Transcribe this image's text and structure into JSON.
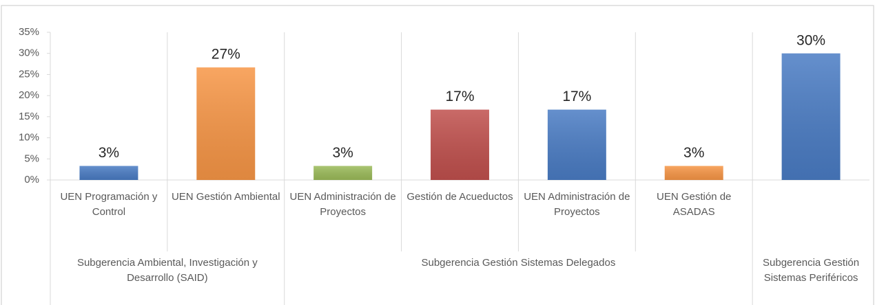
{
  "chart_data": {
    "type": "bar",
    "groups": [
      {
        "name": "Subgerencia Ambiental, Investigación y Desarrollo (SAID)",
        "categories": [
          "UEN Programación y Control",
          "UEN Gestión Ambiental"
        ]
      },
      {
        "name": "Subgerencia Gestión Sistemas Delegados",
        "categories": [
          "UEN Administración de Proyectos",
          "Gestión de Acueductos",
          "UEN Administración de Proyectos",
          "UEN Gestión de ASADAS"
        ]
      },
      {
        "name": "Subgerencia Gestión Sistemas Periféricos",
        "categories": [
          null
        ]
      }
    ],
    "values": [
      3.33,
      26.67,
      3.33,
      16.67,
      16.67,
      3.33,
      30
    ],
    "value_labels": [
      "3%",
      "27%",
      "3%",
      "17%",
      "17%",
      "3%",
      "30%"
    ],
    "colors": [
      "#4a7cc4",
      "#f79646",
      "#9bbb59",
      "#c0504d",
      "#4a7cc4",
      "#f79646",
      "#4a7cc4"
    ],
    "ylim": [
      0,
      35
    ],
    "yticks": [
      {
        "value": 0,
        "label": "0%"
      },
      {
        "value": 5,
        "label": "5%"
      },
      {
        "value": 10,
        "label": "10%"
      },
      {
        "value": 15,
        "label": "15%"
      },
      {
        "value": 20,
        "label": "20%"
      },
      {
        "value": 25,
        "label": "25%"
      },
      {
        "value": 30,
        "label": "30%"
      },
      {
        "value": 35,
        "label": "35%"
      }
    ]
  }
}
